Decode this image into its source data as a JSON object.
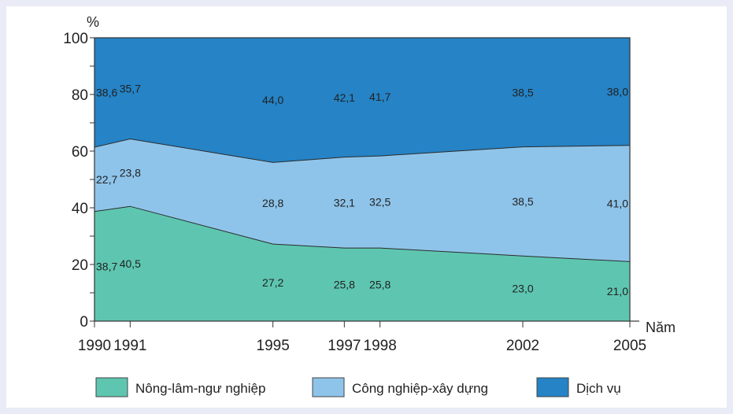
{
  "chart_data": {
    "type": "area",
    "stacked": true,
    "ylabel": "%",
    "xlabel": "Năm",
    "ylim": [
      0,
      100
    ],
    "yticks": [
      0,
      20,
      40,
      60,
      80,
      100
    ],
    "x": [
      1990,
      1991,
      1995,
      1997,
      1998,
      2002,
      2005
    ],
    "x_labels": [
      "1990",
      "1991",
      "1995",
      "1997",
      "1998",
      "2002",
      "2005"
    ],
    "grid": false,
    "legend_position": "bottom",
    "series": [
      {
        "name": "Nông-lâm-ngư nghiệp",
        "color": "#5ec6b0",
        "values": [
          38.7,
          40.5,
          27.2,
          25.8,
          25.8,
          23.0,
          21.0
        ],
        "labels": [
          "38,7",
          "40,5",
          "27,2",
          "25,8",
          "25,8",
          "23,0",
          "21,0"
        ]
      },
      {
        "name": "Công nghiệp-xây dựng",
        "color": "#8ec4ea",
        "values": [
          22.7,
          23.8,
          28.8,
          32.1,
          32.5,
          38.5,
          41.0
        ],
        "labels": [
          "22,7",
          "23,8",
          "28,8",
          "32,1",
          "32,5",
          "38,5",
          "41,0"
        ]
      },
      {
        "name": "Dịch vụ",
        "color": "#2583c6",
        "values": [
          38.6,
          35.7,
          44.0,
          42.1,
          41.7,
          38.5,
          38.0
        ],
        "labels": [
          "38,6",
          "35,7",
          "44,0",
          "42,1",
          "41,7",
          "38,5",
          "38,0"
        ]
      }
    ]
  }
}
